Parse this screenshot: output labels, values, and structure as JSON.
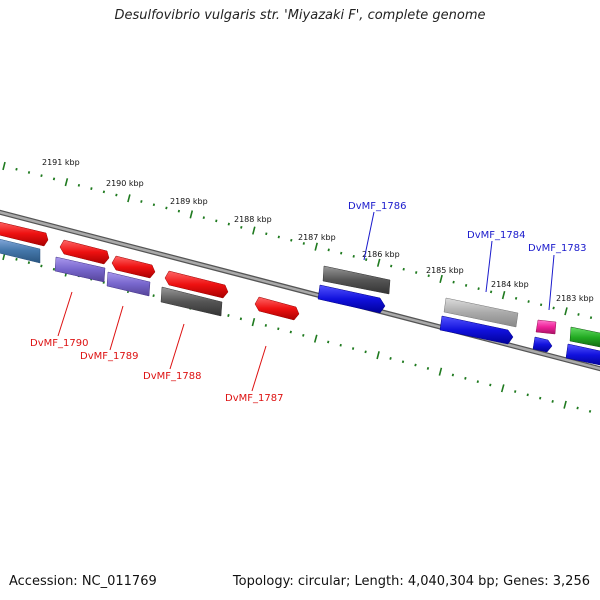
{
  "title": "Desulfovibrio vulgaris str. 'Miyazaki F', complete genome",
  "footer": {
    "accession": "Accession: NC_011769",
    "summary": "Topology: circular; Length: 4,040,304 bp; Genes: 3,256"
  },
  "scale_labels": [
    "2191 kbp",
    "2190 kbp",
    "2189 kbp",
    "2188 kbp",
    "2187 kbp",
    "2186 kbp",
    "2185 kbp",
    "2184 kbp",
    "2183 kbp"
  ],
  "gene_labels": [
    {
      "text": "DvMF_1786",
      "color": "#1a1acc"
    },
    {
      "text": "DvMF_1784",
      "color": "#1a1acc"
    },
    {
      "text": "DvMF_1783",
      "color": "#1a1acc"
    },
    {
      "text": "DvMF_1790",
      "color": "#dd1111"
    },
    {
      "text": "DvMF_1789",
      "color": "#dd1111"
    },
    {
      "text": "DvMF_1788",
      "color": "#dd1111"
    },
    {
      "text": "DvMF_1787",
      "color": "#dd1111"
    }
  ],
  "colors": {
    "backbone": "#888888",
    "ticks": "#1f7a1f",
    "red": "#ee1111",
    "blue": "#1111dd",
    "purple": "#7766cc",
    "steel": "#4477aa",
    "dark_gray": "#555555",
    "light_gray": "#aaaaaa",
    "pink": "#ee2299",
    "green": "#22aa22"
  }
}
